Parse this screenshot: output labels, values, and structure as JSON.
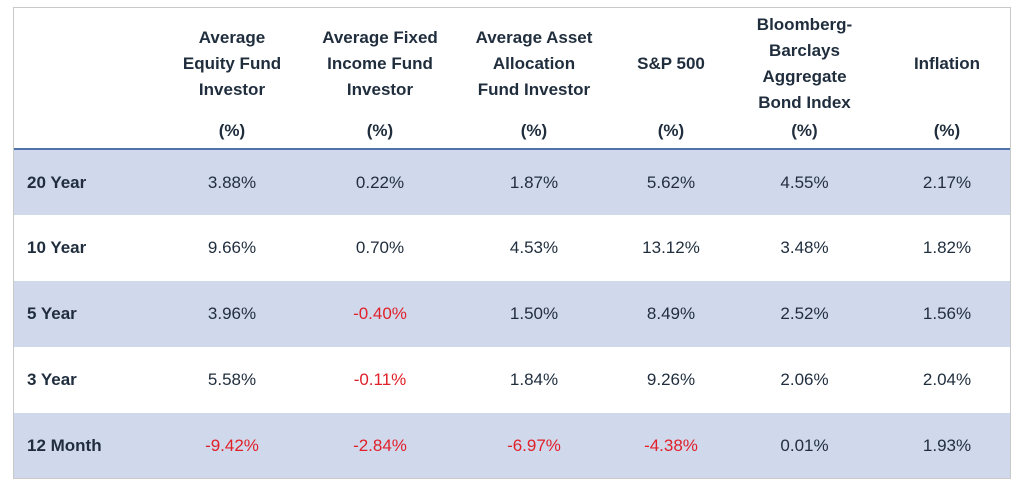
{
  "columns": [
    {
      "label": "",
      "unit": ""
    },
    {
      "label": "Average\nEquity Fund\nInvestor",
      "unit": "(%)"
    },
    {
      "label": "Average Fixed\nIncome Fund\nInvestor",
      "unit": "(%)"
    },
    {
      "label": "Average Asset\nAllocation\nFund Investor",
      "unit": "(%)"
    },
    {
      "label": "S&P 500",
      "unit": "(%)"
    },
    {
      "label": "Bloomberg-\nBarclays\nAggregate\nBond Index",
      "unit": "(%)"
    },
    {
      "label": "Inflation",
      "unit": "(%)"
    }
  ],
  "rows": [
    {
      "label": "20 Year",
      "values": [
        "3.88%",
        "0.22%",
        "1.87%",
        "5.62%",
        "4.55%",
        "2.17%"
      ]
    },
    {
      "label": "10 Year",
      "values": [
        "9.66%",
        "0.70%",
        "4.53%",
        "13.12%",
        "3.48%",
        "1.82%"
      ]
    },
    {
      "label": "5 Year",
      "values": [
        "3.96%",
        "-0.40%",
        "1.50%",
        "8.49%",
        "2.52%",
        "1.56%"
      ]
    },
    {
      "label": "3 Year",
      "values": [
        "5.58%",
        "-0.11%",
        "1.84%",
        "9.26%",
        "2.06%",
        "2.04%"
      ]
    },
    {
      "label": "12 Month",
      "values": [
        "-9.42%",
        "-2.84%",
        "-6.97%",
        "-4.38%",
        "0.01%",
        "1.93%"
      ]
    }
  ],
  "colors": {
    "header_rule": "#4f73a8",
    "shaded_row": "#d0d9eb",
    "negative_text": "#e0202a",
    "text": "#1f2d3d"
  }
}
